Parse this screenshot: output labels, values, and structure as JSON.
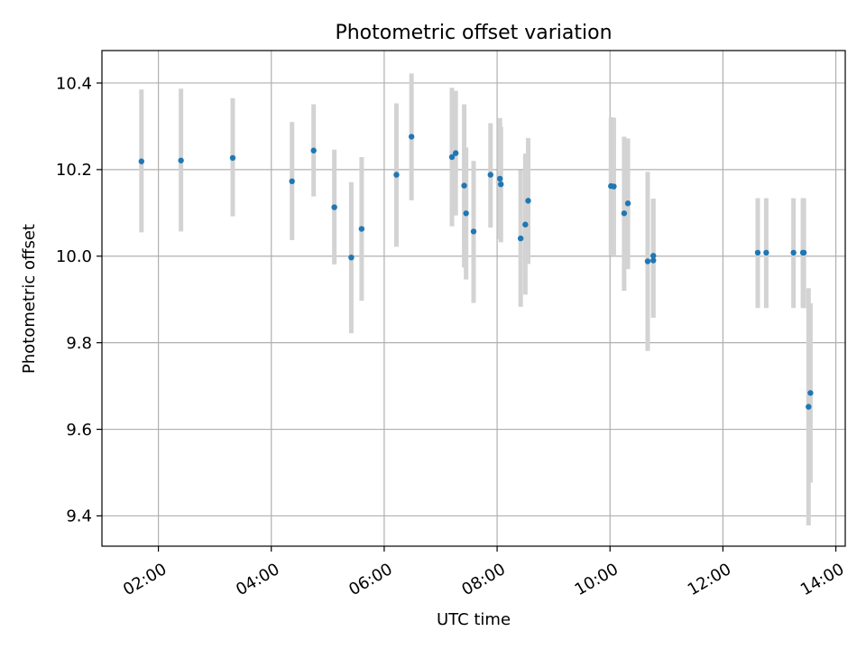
{
  "chart_data": {
    "type": "scatter",
    "title": "Photometric offset variation",
    "xlabel": "UTC time",
    "ylabel": "Photometric offset",
    "x_unit": "time of day (HH:MM)",
    "xlim": [
      "01:00",
      "14:10"
    ],
    "ylim": [
      9.33,
      10.475
    ],
    "x_ticks": [
      "02:00",
      "04:00",
      "06:00",
      "08:00",
      "10:00",
      "12:00",
      "14:00"
    ],
    "y_ticks": [
      9.4,
      9.6,
      9.8,
      10.0,
      10.2,
      10.4
    ],
    "y_tick_labels": [
      "9.4",
      "9.6",
      "9.8",
      "10.0",
      "10.2",
      "10.4"
    ],
    "grid": true,
    "legend": "none",
    "colors": {
      "point": "#1f77b4",
      "errorbar": "#d3d3d3",
      "grid": "#b0b0b0"
    },
    "series": [
      {
        "points": [
          {
            "x": "01:42",
            "y": 10.219,
            "lo": 10.055,
            "hi": 10.385
          },
          {
            "x": "02:24",
            "y": 10.221,
            "lo": 10.057,
            "hi": 10.387
          },
          {
            "x": "03:19",
            "y": 10.227,
            "lo": 10.092,
            "hi": 10.365
          },
          {
            "x": "04:22",
            "y": 10.173,
            "lo": 10.037,
            "hi": 10.31
          },
          {
            "x": "04:45",
            "y": 10.244,
            "lo": 10.138,
            "hi": 10.351
          },
          {
            "x": "05:07",
            "y": 10.113,
            "lo": 9.981,
            "hi": 10.246
          },
          {
            "x": "05:25",
            "y": 9.997,
            "lo": 9.822,
            "hi": 10.171
          },
          {
            "x": "05:36",
            "y": 10.063,
            "lo": 9.897,
            "hi": 10.229
          },
          {
            "x": "06:13",
            "y": 10.188,
            "lo": 10.022,
            "hi": 10.353
          },
          {
            "x": "06:29",
            "y": 10.276,
            "lo": 10.129,
            "hi": 10.422
          },
          {
            "x": "07:12",
            "y": 10.229,
            "lo": 10.069,
            "hi": 10.389
          },
          {
            "x": "07:16",
            "y": 10.238,
            "lo": 10.094,
            "hi": 10.382
          },
          {
            "x": "07:25",
            "y": 10.163,
            "lo": 9.974,
            "hi": 10.351
          },
          {
            "x": "07:27",
            "y": 10.099,
            "lo": 9.946,
            "hi": 10.251
          },
          {
            "x": "07:35",
            "y": 10.057,
            "lo": 9.892,
            "hi": 10.22
          },
          {
            "x": "07:53",
            "y": 10.188,
            "lo": 10.066,
            "hi": 10.307
          },
          {
            "x": "08:03",
            "y": 10.179,
            "lo": 10.039,
            "hi": 10.319
          },
          {
            "x": "08:04",
            "y": 10.166,
            "lo": 10.032,
            "hi": 10.299
          },
          {
            "x": "08:25",
            "y": 10.041,
            "lo": 9.883,
            "hi": 10.199
          },
          {
            "x": "08:30",
            "y": 10.073,
            "lo": 9.911,
            "hi": 10.237
          },
          {
            "x": "08:33",
            "y": 10.128,
            "lo": 9.982,
            "hi": 10.273
          },
          {
            "x": "10:01",
            "y": 10.162,
            "lo": 10.003,
            "hi": 10.321
          },
          {
            "x": "10:04",
            "y": 10.161,
            "lo": 10.002,
            "hi": 10.32
          },
          {
            "x": "10:15",
            "y": 10.099,
            "lo": 9.92,
            "hi": 10.276
          },
          {
            "x": "10:19",
            "y": 10.122,
            "lo": 9.97,
            "hi": 10.272
          },
          {
            "x": "10:40",
            "y": 9.988,
            "lo": 9.781,
            "hi": 10.195
          },
          {
            "x": "10:46",
            "y": 9.99,
            "lo": 9.858,
            "hi": 10.133
          },
          {
            "x": "10:46",
            "y": 10.001,
            "lo": 9.858,
            "hi": 10.133
          },
          {
            "x": "12:37",
            "y": 10.008,
            "lo": 9.88,
            "hi": 10.134
          },
          {
            "x": "12:46",
            "y": 10.008,
            "lo": 9.88,
            "hi": 10.134
          },
          {
            "x": "13:15",
            "y": 10.008,
            "lo": 9.88,
            "hi": 10.134
          },
          {
            "x": "13:25",
            "y": 10.008,
            "lo": 9.88,
            "hi": 10.134
          },
          {
            "x": "13:26",
            "y": 10.008,
            "lo": 9.88,
            "hi": 10.134
          },
          {
            "x": "13:31",
            "y": 9.652,
            "lo": 9.378,
            "hi": 9.926
          },
          {
            "x": "13:33",
            "y": 9.684,
            "lo": 9.477,
            "hi": 9.891
          }
        ]
      }
    ]
  }
}
